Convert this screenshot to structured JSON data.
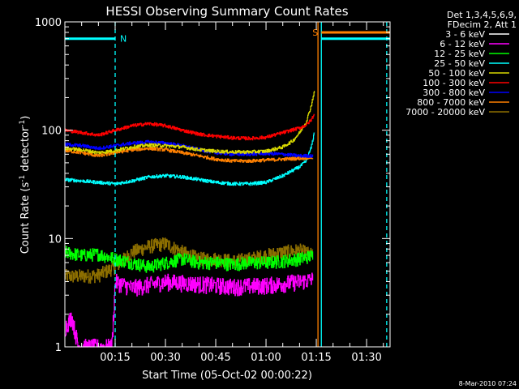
{
  "chart_data": {
    "type": "line",
    "title": "HESSI Observing Summary Count Rates",
    "xlabel": "Start Time (05-Oct-02 00:00:22)",
    "ylabel": "Count Rate (s⁻¹ detector⁻¹)",
    "yscale": "log",
    "ylim": [
      1,
      1000
    ],
    "xlim_minutes": [
      0,
      97
    ],
    "y_ticks": [
      {
        "value": 1,
        "label": "1"
      },
      {
        "value": 10,
        "label": "10"
      },
      {
        "value": 100,
        "label": "100"
      },
      {
        "value": 1000,
        "label": "1000"
      }
    ],
    "x_ticks": [
      {
        "value": 15,
        "label": "00:15"
      },
      {
        "value": 30,
        "label": "00:30"
      },
      {
        "value": 45,
        "label": "00:45"
      },
      {
        "value": 60,
        "label": "01:00"
      },
      {
        "value": 75,
        "label": "01:15"
      },
      {
        "value": 90,
        "label": "01:30"
      }
    ],
    "legend_header": [
      "Det 1,3,4,5,6,9,",
      "FDecim 2, Att 1"
    ],
    "legend_position": "right",
    "series": [
      {
        "name": "3 - 6 keV",
        "color": "#ffffff",
        "x": [],
        "y": []
      },
      {
        "name": "6 - 12 keV",
        "color": "#ff00ff",
        "x": [
          0,
          2,
          4,
          8,
          14,
          15,
          20,
          30,
          40,
          50,
          60,
          70,
          74
        ],
        "y": [
          1.5,
          1.9,
          1.0,
          1.0,
          1.0,
          4.0,
          3.5,
          4.0,
          3.8,
          3.6,
          3.7,
          4.0,
          4.2
        ]
      },
      {
        "name": "12 - 25 keV",
        "color": "#00ff00",
        "x": [
          0,
          5,
          10,
          15,
          20,
          25,
          30,
          35,
          40,
          45,
          50,
          55,
          60,
          65,
          70,
          74
        ],
        "y": [
          7.5,
          7.0,
          7.2,
          6.5,
          6.0,
          5.5,
          6.0,
          6.5,
          6.0,
          6.0,
          5.8,
          6.0,
          6.0,
          6.2,
          6.5,
          7.0
        ]
      },
      {
        "name": "25 - 50 keV",
        "color": "#00ffff",
        "x": [
          0,
          5,
          10,
          15,
          20,
          25,
          30,
          35,
          40,
          45,
          50,
          55,
          60,
          65,
          70,
          72,
          73.5,
          74.5
        ],
        "y": [
          35,
          34,
          33,
          32,
          34,
          37,
          38,
          37,
          35,
          33,
          32,
          32,
          33,
          38,
          46,
          52,
          70,
          100
        ]
      },
      {
        "name": "50 - 100 keV",
        "color": "#d8d800",
        "x": [
          0,
          5,
          10,
          15,
          20,
          25,
          30,
          35,
          40,
          45,
          50,
          55,
          60,
          65,
          68,
          70,
          72,
          73.5,
          74.5
        ],
        "y": [
          68,
          66,
          62,
          65,
          70,
          73,
          72,
          70,
          66,
          64,
          63,
          63,
          64,
          70,
          80,
          95,
          120,
          170,
          240
        ]
      },
      {
        "name": "100 - 300 keV",
        "color": "#ff0000",
        "x": [
          0,
          5,
          10,
          15,
          20,
          25,
          30,
          35,
          40,
          45,
          50,
          55,
          60,
          65,
          70,
          72,
          73.5,
          74.5
        ],
        "y": [
          100,
          95,
          90,
          100,
          110,
          115,
          110,
          100,
          92,
          88,
          85,
          84,
          86,
          95,
          105,
          112,
          125,
          145
        ]
      },
      {
        "name": "300 - 800 keV",
        "color": "#0000ff",
        "x": [
          0,
          5,
          10,
          15,
          20,
          25,
          30,
          35,
          40,
          45,
          50,
          55,
          60,
          65,
          70,
          74
        ],
        "y": [
          74,
          72,
          68,
          72,
          76,
          78,
          76,
          72,
          66,
          62,
          60,
          60,
          61,
          60,
          58,
          58
        ]
      },
      {
        "name": "800 - 7000 keV",
        "color": "#ff8000",
        "x": [
          0,
          5,
          10,
          15,
          20,
          25,
          30,
          35,
          40,
          45,
          50,
          55,
          60,
          65,
          70,
          74
        ],
        "y": [
          65,
          62,
          58,
          62,
          66,
          68,
          66,
          62,
          58,
          54,
          52,
          52,
          53,
          54,
          55,
          56
        ]
      },
      {
        "name": "7000 - 20000 keV",
        "color": "#8c6e00",
        "x": [
          0,
          5,
          10,
          15,
          20,
          25,
          30,
          35,
          40,
          45,
          50,
          55,
          60,
          65,
          70,
          74
        ],
        "y": [
          4.5,
          4.5,
          4.6,
          5.5,
          7.5,
          8.5,
          9.0,
          7.5,
          6.5,
          6.5,
          6.2,
          6.5,
          7.0,
          7.5,
          7.8,
          7.0
        ]
      }
    ],
    "flags": [
      {
        "label": "N",
        "x_start": 0,
        "x_end": 15,
        "y": 700,
        "color": "#00ffff"
      },
      {
        "label": "S",
        "x_start": 76.5,
        "x_end": 97,
        "y": 800,
        "color": "#ff8000"
      },
      {
        "label": "",
        "x_start": 76.5,
        "x_end": 97,
        "y": 700,
        "color": "#00ffff"
      }
    ],
    "vlines": [
      {
        "x": 15,
        "color": "#00ffff",
        "style": "dashed"
      },
      {
        "x": 75.5,
        "color": "#ff8000",
        "style": "solid"
      },
      {
        "x": 76.5,
        "color": "#00ffff",
        "style": "solid"
      },
      {
        "x": 96,
        "color": "#00ffff",
        "style": "dashed"
      }
    ],
    "footer": "8-Mar-2010 07:24"
  }
}
